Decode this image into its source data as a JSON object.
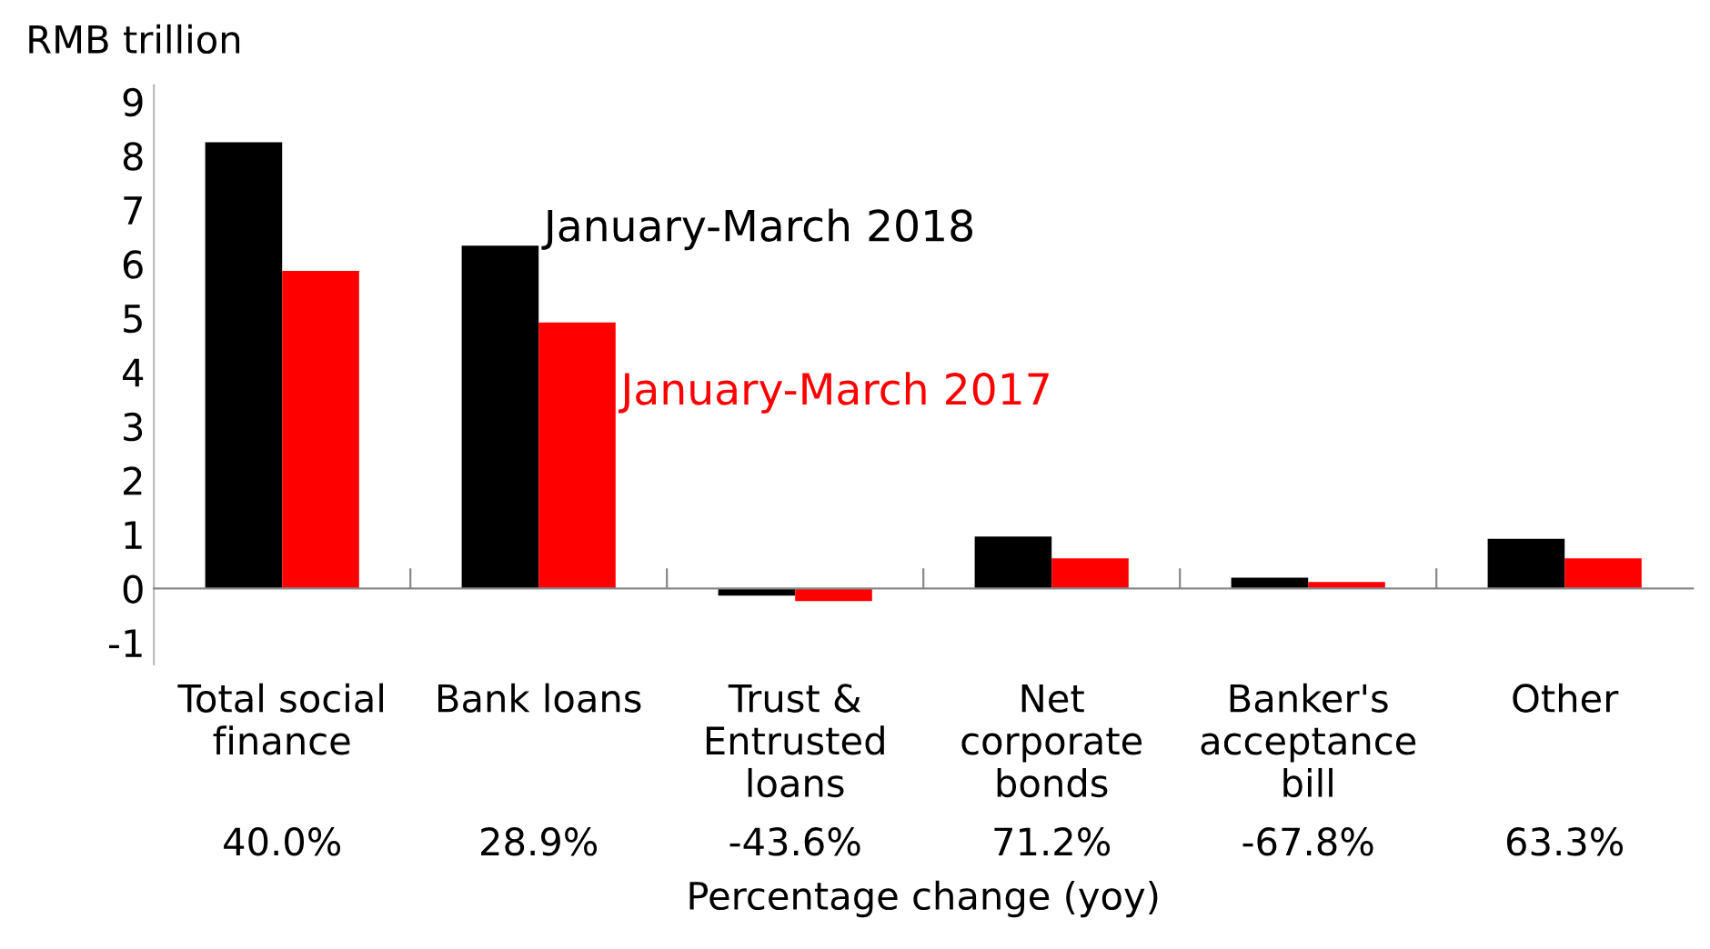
{
  "chart_data": {
    "type": "bar",
    "ylabel": "RMB trillion",
    "xlabel": "Percentage change (yoy)",
    "categories": [
      "Total social\nfinance",
      "Bank loans",
      "Trust &\nEntrusted\nloans",
      "Net\ncorporate\nbonds",
      "Banker's\nacceptance\nbill",
      "Other"
    ],
    "series": [
      {
        "name": "January-March 2018",
        "color": "#000000",
        "values": [
          8.25,
          6.34,
          -0.13,
          0.96,
          0.2,
          0.92
        ]
      },
      {
        "name": "January-March 2017",
        "color": "#ff0000",
        "values": [
          5.87,
          4.92,
          -0.23,
          0.56,
          0.12,
          0.56
        ]
      }
    ],
    "annotations": [
      "40.0%",
      "28.9%",
      "-43.6%",
      "71.2%",
      "-67.8%",
      "63.3%"
    ],
    "ylim": [
      -1.4,
      9.3
    ],
    "yticks": [
      -1,
      0,
      1,
      2,
      3,
      4,
      5,
      6,
      7,
      8,
      9
    ],
    "grid": false,
    "legend": false
  }
}
